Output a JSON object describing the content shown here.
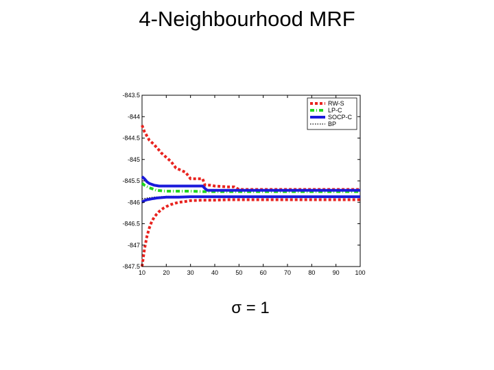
{
  "slide": {
    "title": "4-Neighbourhood MRF",
    "caption": "σ = 1"
  },
  "chart_data": {
    "type": "line",
    "title": "",
    "xlabel": "",
    "ylabel": "",
    "xlim": [
      10,
      100
    ],
    "ylim": [
      -847.5,
      -843.5
    ],
    "xticks": [
      "10",
      "20",
      "30",
      "40",
      "50",
      "60",
      "70",
      "80",
      "90",
      "100"
    ],
    "yticks": [
      "-843.5",
      "-844",
      "-844.5",
      "-845",
      "-845.5",
      "-846",
      "-846.5",
      "-847",
      "-847.5"
    ],
    "grid": false,
    "legend_position": "top-right",
    "series": [
      {
        "name": "RW-S",
        "color": "#e8231f",
        "style": "dashed",
        "x": [
          10,
          11,
          12,
          13,
          14,
          15,
          16,
          17,
          18,
          19,
          20,
          22,
          24,
          26,
          28,
          30,
          35,
          36,
          38,
          40,
          45,
          48,
          50,
          60,
          80,
          100
        ],
        "y": [
          -844.2,
          -844.35,
          -844.45,
          -844.55,
          -844.6,
          -844.65,
          -844.72,
          -844.78,
          -844.85,
          -844.9,
          -844.95,
          -845.05,
          -845.2,
          -845.25,
          -845.3,
          -845.45,
          -845.45,
          -845.6,
          -845.6,
          -845.62,
          -845.64,
          -845.64,
          -845.7,
          -845.7,
          -845.7,
          -845.7
        ]
      },
      {
        "name": "LP-C",
        "color": "#1fd61f",
        "style": "dash-dot",
        "x": [
          10,
          11,
          12,
          13,
          14,
          15,
          16,
          18,
          20,
          30,
          35,
          36,
          40,
          50,
          60,
          80,
          100
        ],
        "y": [
          -845.55,
          -845.6,
          -845.63,
          -845.66,
          -845.68,
          -845.7,
          -845.72,
          -845.73,
          -845.74,
          -845.74,
          -845.75,
          -845.75,
          -845.75,
          -845.75,
          -845.75,
          -845.75,
          -845.75
        ]
      },
      {
        "name": "SOCP-C",
        "color": "#1a1adb",
        "style": "solid",
        "x": [
          10,
          11,
          12,
          13,
          14,
          15,
          16,
          17,
          18,
          20,
          25,
          30,
          35,
          36,
          37,
          40,
          50,
          60,
          80,
          100
        ],
        "y": [
          -845.4,
          -845.45,
          -845.52,
          -845.56,
          -845.58,
          -845.6,
          -845.61,
          -845.62,
          -845.62,
          -845.62,
          -845.62,
          -845.62,
          -845.62,
          -845.68,
          -845.72,
          -845.72,
          -845.72,
          -845.72,
          -845.72,
          -845.72
        ]
      },
      {
        "name": "BP",
        "color": "#000000",
        "style": "dotted",
        "x": [
          10,
          12,
          15,
          20,
          30,
          40,
          50,
          60,
          80,
          100
        ],
        "y": [
          -845.92,
          -845.9,
          -845.88,
          -845.86,
          -845.86,
          -845.86,
          -845.86,
          -845.86,
          -845.86,
          -845.86
        ]
      },
      {
        "name": "",
        "color": "#1a1adb",
        "style": "solid",
        "x": [
          10,
          11,
          12,
          13,
          14,
          15,
          16,
          18,
          20,
          25,
          30,
          40,
          50,
          60,
          80,
          100
        ],
        "y": [
          -846.0,
          -845.96,
          -845.94,
          -845.93,
          -845.92,
          -845.91,
          -845.9,
          -845.89,
          -845.88,
          -845.88,
          -845.87,
          -845.87,
          -845.87,
          -845.87,
          -845.87,
          -845.87
        ]
      },
      {
        "name": "",
        "color": "#e8231f",
        "style": "dashed",
        "x": [
          10,
          11,
          12,
          13,
          14,
          15,
          16,
          17,
          18,
          19,
          20,
          22,
          25,
          28,
          30,
          35,
          40,
          45,
          50,
          60,
          80,
          100
        ],
        "y": [
          -847.5,
          -847.1,
          -846.8,
          -846.6,
          -846.45,
          -846.35,
          -846.28,
          -846.22,
          -846.17,
          -846.13,
          -846.1,
          -846.05,
          -846.0,
          -845.98,
          -845.96,
          -845.95,
          -845.95,
          -845.94,
          -845.94,
          -845.94,
          -845.94,
          -845.94
        ]
      }
    ]
  }
}
